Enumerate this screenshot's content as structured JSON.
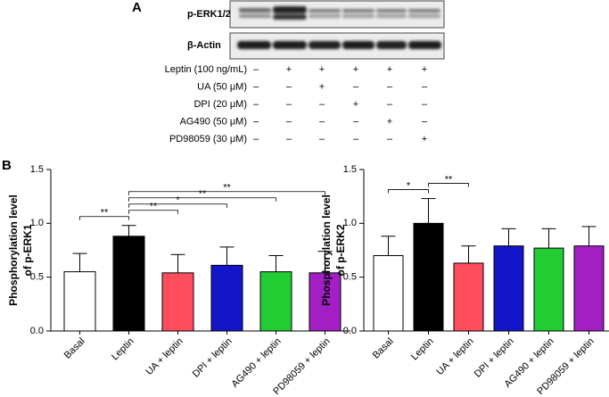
{
  "panel_labels": [
    "A",
    "B"
  ],
  "blot": {
    "bands": [
      "p-ERK1/2",
      "β-Actin"
    ],
    "treatments": [
      {
        "label": "Leptin (100 ng/mL)",
        "signs": [
          "–",
          "+",
          "+",
          "+",
          "+",
          "+"
        ]
      },
      {
        "label": "UA (50 μM)",
        "signs": [
          "–",
          "–",
          "+",
          "–",
          "–",
          "–"
        ]
      },
      {
        "label": "DPI (20 μM)",
        "signs": [
          "–",
          "–",
          "–",
          "+",
          "–",
          "–"
        ]
      },
      {
        "label": "AG490 (50 μM)",
        "signs": [
          "–",
          "–",
          "–",
          "–",
          "+",
          "–"
        ]
      },
      {
        "label": "PD98059 (30 μM)",
        "signs": [
          "–",
          "–",
          "–",
          "–",
          "–",
          "+"
        ]
      }
    ]
  },
  "chart_data": [
    {
      "type": "bar",
      "ylabel": [
        "Phosphorylation level",
        "of p-ERK1"
      ],
      "categories": [
        "Basal",
        "Leptin",
        "UA + leptin",
        "DPI + leptin",
        "AG490 + leptin",
        "PD98059 + leptin"
      ],
      "values": [
        0.55,
        0.88,
        0.54,
        0.61,
        0.55,
        0.54
      ],
      "errors": [
        0.17,
        0.1,
        0.17,
        0.17,
        0.15,
        0.2
      ],
      "colors": [
        "#ffffff",
        "#000000",
        "#ff4d5e",
        "#1414c8",
        "#22cc33",
        "#a21fc4"
      ],
      "ylim": [
        0,
        1.5
      ],
      "yticks": [
        {
          "value": 0,
          "label": "0.0"
        },
        0.5,
        {
          "value": 1,
          "label": "1.0"
        },
        1.5
      ],
      "annotations": [
        {
          "between": [
            "Basal",
            "Leptin"
          ],
          "label": "**"
        },
        {
          "between": [
            "Leptin",
            "UA + leptin"
          ],
          "label": "**"
        },
        {
          "between": [
            "Leptin",
            "DPI + leptin"
          ],
          "label": "*"
        },
        {
          "between": [
            "Leptin",
            "AG490 + leptin"
          ],
          "label": "**"
        },
        {
          "between": [
            "Leptin",
            "PD98059 + leptin"
          ],
          "label": "**"
        }
      ]
    },
    {
      "type": "bar",
      "ylabel": [
        "Phosphorylation level",
        "of  p-ERK2"
      ],
      "categories": [
        "Basal",
        "Leptin",
        "UA + leptin",
        "DPI + leptin",
        "AG490 + leptin",
        "PD98059 + leptin"
      ],
      "values": [
        0.7,
        1.0,
        0.63,
        0.79,
        0.77,
        0.79
      ],
      "errors": [
        0.18,
        0.23,
        0.16,
        0.16,
        0.18,
        0.18
      ],
      "colors": [
        "#ffffff",
        "#000000",
        "#ff4d5e",
        "#1414c8",
        "#22cc33",
        "#a21fc4"
      ],
      "ylim": [
        0,
        1.5
      ],
      "yticks": [
        {
          "value": 0,
          "label": "0.0"
        },
        0.5,
        {
          "value": 1,
          "label": "1.0"
        },
        1.5
      ],
      "annotations": [
        {
          "between": [
            "Basal",
            "Leptin"
          ],
          "label": "*"
        },
        {
          "between": [
            "Leptin",
            "UA + leptin"
          ],
          "label": "**"
        }
      ]
    }
  ]
}
